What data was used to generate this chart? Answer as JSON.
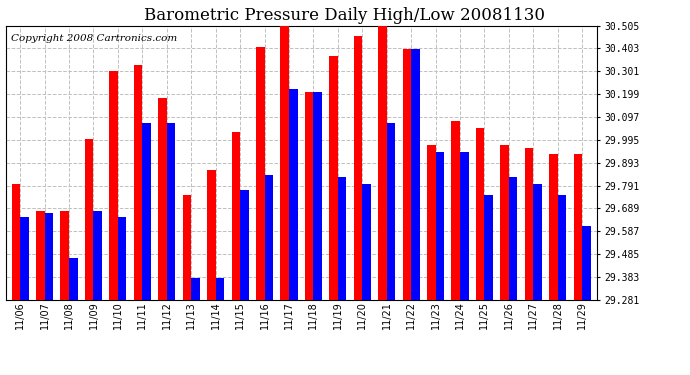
{
  "title": "Barometric Pressure Daily High/Low 20081130",
  "copyright": "Copyright 2008 Cartronics.com",
  "dates": [
    "11/06",
    "11/07",
    "11/08",
    "11/09",
    "11/10",
    "11/11",
    "11/12",
    "11/13",
    "11/14",
    "11/15",
    "11/16",
    "11/17",
    "11/18",
    "11/19",
    "11/20",
    "11/21",
    "11/22",
    "11/23",
    "11/24",
    "11/25",
    "11/26",
    "11/27",
    "11/28",
    "11/29"
  ],
  "highs": [
    29.8,
    29.68,
    29.68,
    30.0,
    30.3,
    30.33,
    30.18,
    29.75,
    29.86,
    30.03,
    30.41,
    30.52,
    30.21,
    30.37,
    30.46,
    30.52,
    30.4,
    29.97,
    30.08,
    30.05,
    29.97,
    29.96,
    29.93,
    29.93
  ],
  "lows": [
    29.65,
    29.67,
    29.47,
    29.68,
    29.65,
    30.07,
    30.07,
    29.38,
    29.38,
    29.77,
    29.84,
    30.22,
    30.21,
    29.83,
    29.8,
    30.07,
    30.4,
    29.94,
    29.94,
    29.75,
    29.83,
    29.8,
    29.75,
    29.61
  ],
  "ymin": 29.281,
  "ymax": 30.505,
  "yticks": [
    29.281,
    29.383,
    29.485,
    29.587,
    29.689,
    29.791,
    29.893,
    29.995,
    30.097,
    30.199,
    30.301,
    30.403,
    30.505
  ],
  "high_color": "#ff0000",
  "low_color": "#0000ff",
  "bg_color": "#ffffff",
  "plot_bg_color": "#ffffff",
  "grid_color": "#c0c0c0",
  "title_fontsize": 12,
  "copyright_fontsize": 7.5,
  "bar_width": 0.35
}
